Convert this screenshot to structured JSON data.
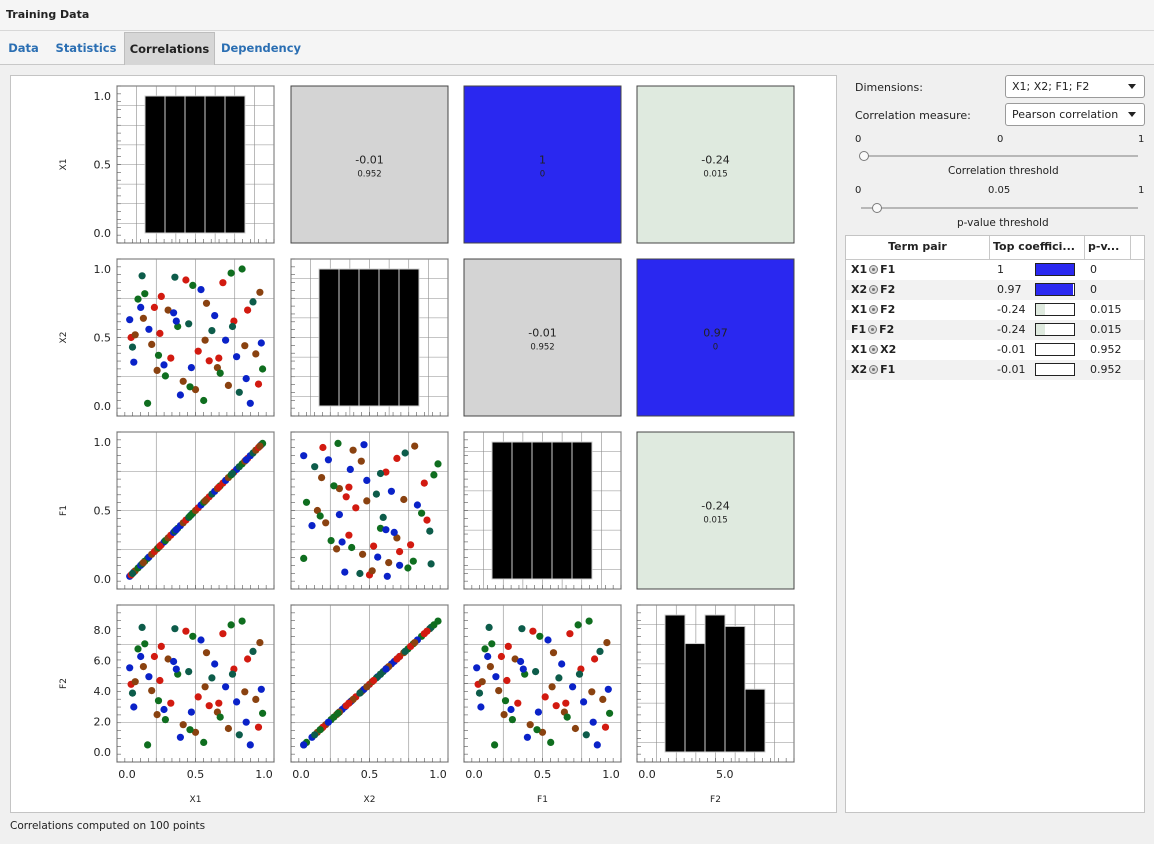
{
  "window": {
    "title": "Training Data"
  },
  "tabs": [
    {
      "label": "Data",
      "active": false
    },
    {
      "label": "Statistics",
      "active": false
    },
    {
      "label": "Correlations",
      "active": true
    },
    {
      "label": "Dependency",
      "active": false
    }
  ],
  "controls": {
    "dimensions_label": "Dimensions:",
    "dimensions_value": "X1; X2; F1; F2",
    "measure_label": "Correlation measure:",
    "measure_value": "Pearson correlation",
    "corr_threshold": {
      "min": "0",
      "value": "0",
      "max": "1",
      "label": "Correlation threshold",
      "level": 0.0
    },
    "pvalue_threshold": {
      "min": "0",
      "value": "0.05",
      "max": "1",
      "label": "p-value threshold",
      "level": 0.05
    }
  },
  "table": {
    "headers": [
      "Term pair",
      "Top coeffici...",
      "p-v..."
    ],
    "rows": [
      {
        "a": "X1",
        "b": "F1",
        "coef": "1",
        "fill": 1.0,
        "pval": "0"
      },
      {
        "a": "X2",
        "b": "F2",
        "coef": "0.97",
        "fill": 0.97,
        "pval": "0"
      },
      {
        "a": "X1",
        "b": "F2",
        "coef": "-0.24",
        "fill": 0.24,
        "pval": "0.015"
      },
      {
        "a": "F1",
        "b": "F2",
        "coef": "-0.24",
        "fill": 0.24,
        "pval": "0.015"
      },
      {
        "a": "X1",
        "b": "X2",
        "coef": "-0.01",
        "fill": 0.01,
        "pval": "0.952"
      },
      {
        "a": "X2",
        "b": "F1",
        "coef": "-0.01",
        "fill": 0.01,
        "pval": "0.952"
      }
    ]
  },
  "status": "Correlations computed on 100 points",
  "colors": {
    "strong_positive": "#2a28f0",
    "neutral": "#d4d4d4",
    "weak_negative": "#dfeadf",
    "point_palette": [
      "#0a22c8",
      "#d21a10",
      "#8a4210",
      "#0f6e1f",
      "#0d5c4a"
    ]
  },
  "chart_data": [
    {
      "type": "scatter-matrix",
      "variables": [
        "X1",
        "X2",
        "F1",
        "F2"
      ],
      "axis_ranges": {
        "X1": [
          0,
          1
        ],
        "X2": [
          0,
          1
        ],
        "F1": [
          0,
          1
        ],
        "F2": [
          0,
          9
        ]
      },
      "y_tick_labels": {
        "X1": [
          "1.0",
          "0.5",
          "0.0"
        ],
        "X2": [
          "1.0",
          "0.5",
          "0.0"
        ],
        "F1": [
          "1.0",
          "0.5",
          "0.0"
        ],
        "F2": [
          "8.0",
          "6.0",
          "4.0",
          "2.0",
          "0.0"
        ]
      },
      "x_tick_labels": {
        "X1": [
          "0.0",
          "0.5",
          "1.0"
        ],
        "X2": [
          "0.0",
          "0.5",
          "1.0"
        ],
        "F1": [
          "0.0",
          "0.5",
          "1.0"
        ],
        "F2": [
          "0.0",
          "5.0"
        ]
      },
      "correlation_cells": [
        {
          "row": "X1",
          "col": "X2",
          "r": "-0.01",
          "p": "0.952",
          "color": "#d4d4d4"
        },
        {
          "row": "X1",
          "col": "F1",
          "r": "1",
          "p": "0",
          "color": "#2a28f0"
        },
        {
          "row": "X1",
          "col": "F2",
          "r": "-0.24",
          "p": "0.015",
          "color": "#dfeadf"
        },
        {
          "row": "X2",
          "col": "F1",
          "r": "-0.01",
          "p": "0.952",
          "color": "#d4d4d4"
        },
        {
          "row": "X2",
          "col": "F2",
          "r": "0.97",
          "p": "0",
          "color": "#2a28f0"
        },
        {
          "row": "F1",
          "col": "F2",
          "r": "-0.24",
          "p": "0.015",
          "color": "#dfeadf"
        }
      ],
      "histograms": {
        "X1": {
          "range": [
            0,
            1
          ],
          "values": [
            20,
            20,
            20,
            20,
            20
          ],
          "ylim": [
            0,
            20
          ]
        },
        "X2": {
          "range": [
            0,
            1
          ],
          "values": [
            20,
            20,
            20,
            20,
            20
          ],
          "ylim": [
            0,
            20
          ]
        },
        "F1": {
          "range": [
            0,
            1
          ],
          "values": [
            20,
            20,
            20,
            20,
            20
          ],
          "ylim": [
            0,
            20
          ]
        },
        "F2": {
          "range": [
            0,
            9
          ],
          "values": [
            24,
            19,
            24,
            22,
            11
          ],
          "ylim": [
            0,
            24
          ]
        }
      },
      "points": {
        "X1": [
          0.02,
          0.03,
          0.05,
          0.06,
          0.08,
          0.1,
          0.11,
          0.13,
          0.15,
          0.16,
          0.18,
          0.2,
          0.22,
          0.23,
          0.25,
          0.27,
          0.28,
          0.3,
          0.32,
          0.34,
          0.35,
          0.37,
          0.39,
          0.41,
          0.43,
          0.45,
          0.47,
          0.48,
          0.5,
          0.52,
          0.54,
          0.56,
          0.58,
          0.6,
          0.62,
          0.64,
          0.66,
          0.68,
          0.7,
          0.72,
          0.74,
          0.76,
          0.78,
          0.8,
          0.82,
          0.84,
          0.86,
          0.88,
          0.9,
          0.92,
          0.94,
          0.96,
          0.98,
          0.99,
          0.04,
          0.12,
          0.24,
          0.36,
          0.46,
          0.57,
          0.67,
          0.77,
          0.87,
          0.97
        ],
        "X2": [
          0.63,
          0.5,
          0.32,
          0.52,
          0.78,
          0.72,
          0.95,
          0.82,
          0.02,
          0.56,
          0.45,
          0.72,
          0.26,
          0.37,
          0.8,
          0.3,
          0.22,
          0.7,
          0.35,
          0.68,
          0.94,
          0.58,
          0.08,
          0.18,
          0.92,
          0.6,
          0.28,
          0.88,
          0.12,
          0.4,
          0.85,
          0.04,
          0.75,
          0.33,
          0.55,
          0.66,
          0.28,
          0.24,
          0.9,
          0.48,
          0.15,
          0.97,
          0.62,
          0.36,
          0.1,
          1.0,
          0.44,
          0.7,
          0.02,
          0.76,
          0.38,
          0.16,
          0.46,
          0.27,
          0.43,
          0.64,
          0.53,
          0.62,
          0.14,
          0.48,
          0.35,
          0.58,
          0.2,
          0.83
        ],
        "colors": [
          0,
          1,
          0,
          2,
          3,
          0,
          4,
          3,
          3,
          0,
          2,
          1,
          2,
          3,
          1,
          0,
          3,
          2,
          1,
          0,
          4,
          3,
          0,
          2,
          1,
          4,
          0,
          3,
          2,
          1,
          0,
          3,
          2,
          1,
          4,
          0,
          2,
          3,
          1,
          0,
          2,
          3,
          1,
          0,
          4,
          3,
          2,
          1,
          0,
          4,
          2,
          1,
          0,
          3,
          4,
          2,
          1,
          0,
          3,
          2,
          1,
          4,
          0,
          2
        ]
      }
    }
  ]
}
